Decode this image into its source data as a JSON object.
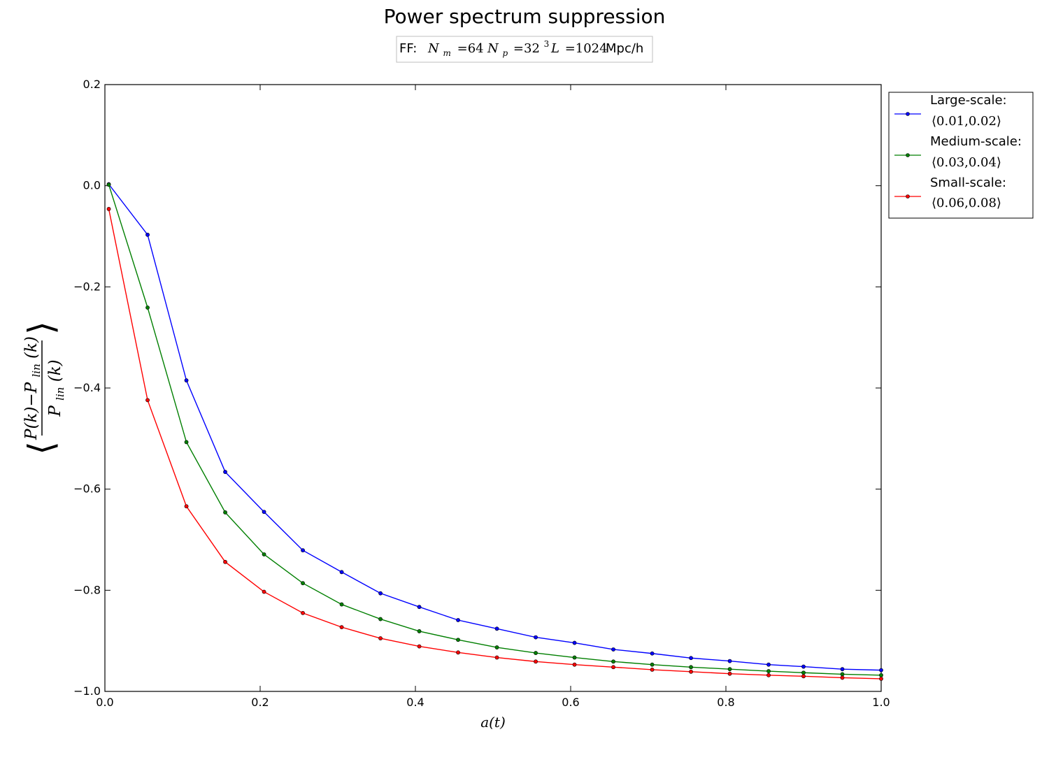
{
  "chart_data": {
    "type": "line",
    "title": "Power spectrum suppression",
    "subtitle": {
      "prefix": "FF:",
      "nm": "N",
      "nm_sub": "m",
      "nm_eq": "=64",
      "np": "N",
      "np_sub": "p",
      "np_eq": "=32",
      "np_exp": "3",
      "l": "L",
      "l_eq": "=1024",
      "unit": "Mpc/h"
    },
    "xlabel": "a(t)",
    "ylabel": {
      "numerator": "P(k)−P",
      "numerator_sub": "lin",
      "numerator_tail": "(k)",
      "denominator": "P",
      "denominator_sub": "lin",
      "denominator_tail": "(k)"
    },
    "xlim": [
      0.0,
      1.0
    ],
    "ylim": [
      -1.0,
      0.2
    ],
    "xticks": [
      0.0,
      0.2,
      0.4,
      0.6,
      0.8,
      1.0
    ],
    "xtick_labels": [
      "0.0",
      "0.2",
      "0.4",
      "0.6",
      "0.8",
      "1.0"
    ],
    "yticks": [
      0.2,
      0.0,
      -0.2,
      -0.4,
      -0.6,
      -0.8,
      -1.0
    ],
    "ytick_labels": [
      "0.2",
      "0.0",
      "−0.2",
      "−0.4",
      "−0.6",
      "−0.8",
      "−1.0"
    ],
    "grid": false,
    "legend_position": "outside-right-top",
    "x": [
      0.005,
      0.055,
      0.105,
      0.155,
      0.205,
      0.255,
      0.305,
      0.355,
      0.405,
      0.455,
      0.505,
      0.555,
      0.605,
      0.655,
      0.705,
      0.755,
      0.805,
      0.855,
      0.9,
      0.95,
      1.0
    ],
    "series": [
      {
        "name": "Large-scale:",
        "range": "⟨0.01,0.02⟩",
        "color": "#0000ff",
        "values": [
          0.003,
          -0.097,
          -0.385,
          -0.566,
          -0.645,
          -0.721,
          -0.764,
          -0.806,
          -0.833,
          -0.859,
          -0.876,
          -0.893,
          -0.904,
          -0.917,
          -0.925,
          -0.934,
          -0.94,
          -0.947,
          -0.951,
          -0.956,
          -0.958
        ]
      },
      {
        "name": "Medium-scale:",
        "range": "⟨0.03,0.04⟩",
        "color": "#007f00",
        "values": [
          0.002,
          -0.241,
          -0.507,
          -0.646,
          -0.729,
          -0.786,
          -0.828,
          -0.857,
          -0.881,
          -0.898,
          -0.913,
          -0.924,
          -0.933,
          -0.941,
          -0.947,
          -0.952,
          -0.956,
          -0.96,
          -0.963,
          -0.966,
          -0.968
        ]
      },
      {
        "name": "Small-scale:",
        "range": "⟨0.06,0.08⟩",
        "color": "#ff0000",
        "values": [
          -0.046,
          -0.424,
          -0.634,
          -0.744,
          -0.803,
          -0.845,
          -0.873,
          -0.895,
          -0.911,
          -0.923,
          -0.933,
          -0.941,
          -0.947,
          -0.952,
          -0.957,
          -0.961,
          -0.965,
          -0.968,
          -0.97,
          -0.973,
          -0.975
        ]
      }
    ]
  }
}
